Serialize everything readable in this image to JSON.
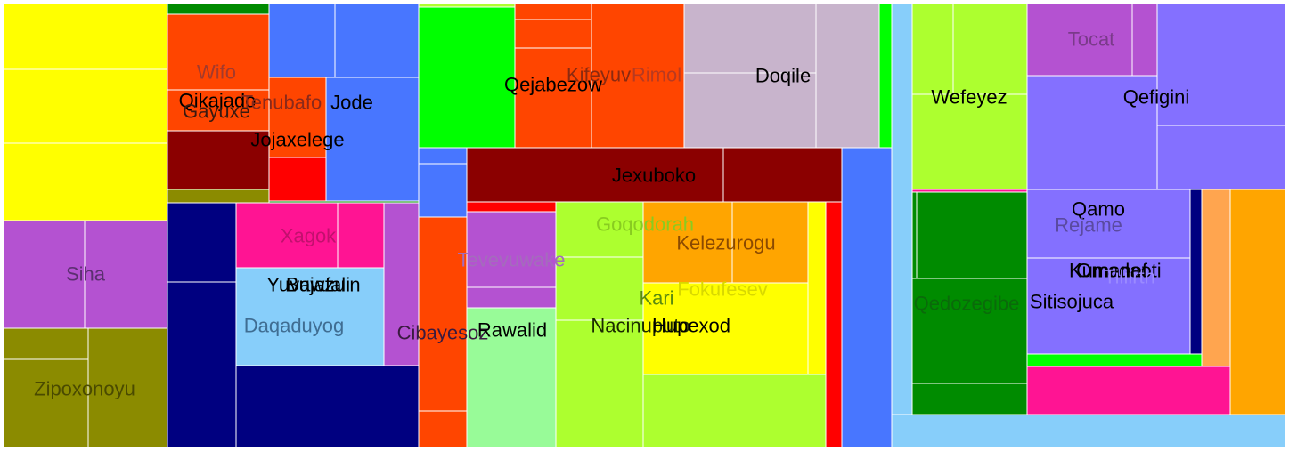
{
  "chart_data": {
    "type": "treemap",
    "colors": {
      "yellow": "#ffff00",
      "orchid": "#b452d1",
      "olive": "#8b8b00",
      "green_dark": "#008b00",
      "orange_red": "#ff4500",
      "maroon": "#8b0000",
      "red": "#ff0000",
      "royal_blue": "#4876ff",
      "navy": "#000080",
      "pink": "#ff1493",
      "sky": "#87cefa",
      "lime": "#00ff00",
      "pale_green": "#98fb98",
      "yellow_green": "#adff2f",
      "orange": "#ffa500",
      "thistle": "#c8b4cc",
      "slate": "#8470ff",
      "light_orange": "#ffa54f"
    },
    "cells": [
      {
        "c": "yellow",
        "r": [
          4,
          4,
          188,
          78
        ]
      },
      {
        "c": "yellow",
        "r": [
          4,
          78,
          188,
          161
        ]
      },
      {
        "c": "yellow",
        "r": [
          4,
          161,
          188,
          248
        ]
      },
      {
        "c": "orchid",
        "r": [
          4,
          248,
          95,
          369
        ]
      },
      {
        "c": "orchid",
        "r": [
          95,
          248,
          188,
          369
        ]
      },
      {
        "c": "olive",
        "r": [
          4,
          369,
          99,
          404
        ]
      },
      {
        "c": "olive",
        "r": [
          4,
          404,
          99,
          503
        ]
      },
      {
        "c": "olive",
        "r": [
          99,
          369,
          188,
          503
        ]
      },
      {
        "c": "green_dark",
        "r": [
          188,
          4,
          302,
          16
        ]
      },
      {
        "c": "orange_red",
        "r": [
          188,
          16,
          302,
          101
        ]
      },
      {
        "c": "orange_red",
        "r": [
          188,
          101,
          302,
          147
        ]
      },
      {
        "c": "maroon",
        "r": [
          188,
          147,
          302,
          213
        ]
      },
      {
        "c": "olive",
        "r": [
          188,
          213,
          302,
          228
        ]
      },
      {
        "c": "royal_blue",
        "r": [
          302,
          4,
          376,
          87
        ]
      },
      {
        "c": "royal_blue",
        "r": [
          376,
          4,
          470,
          87
        ]
      },
      {
        "c": "orange_red",
        "r": [
          302,
          87,
          366,
          177
        ]
      },
      {
        "c": "red",
        "r": [
          302,
          177,
          366,
          226
        ]
      },
      {
        "c": "royal_blue",
        "r": [
          366,
          87,
          470,
          226
        ]
      },
      {
        "c": "green_dark",
        "r": [
          302,
          226,
          470,
          229
        ]
      },
      {
        "c": "navy",
        "r": [
          188,
          228,
          265,
          317
        ]
      },
      {
        "c": "navy",
        "r": [
          188,
          317,
          265,
          503
        ]
      },
      {
        "c": "pink",
        "r": [
          265,
          228,
          379,
          301
        ]
      },
      {
        "c": "pink",
        "r": [
          379,
          228,
          431,
          301
        ]
      },
      {
        "c": "sky",
        "r": [
          265,
          301,
          431,
          411
        ]
      },
      {
        "c": "orchid",
        "r": [
          431,
          228,
          470,
          411
        ]
      },
      {
        "c": "navy",
        "r": [
          265,
          411,
          470,
          503
        ]
      },
      {
        "c": "yellow_green",
        "r": [
          470,
          4,
          578,
          8
        ]
      },
      {
        "c": "lime",
        "r": [
          470,
          8,
          578,
          166
        ]
      },
      {
        "c": "orange_red",
        "r": [
          578,
          4,
          664,
          22
        ]
      },
      {
        "c": "orange_red",
        "r": [
          578,
          22,
          664,
          54
        ]
      },
      {
        "c": "orange_red",
        "r": [
          578,
          54,
          664,
          166
        ]
      },
      {
        "c": "orange_red",
        "r": [
          664,
          4,
          768,
          166
        ]
      },
      {
        "c": "thistle",
        "r": [
          768,
          4,
          916,
          82
        ]
      },
      {
        "c": "thistle",
        "r": [
          768,
          82,
          916,
          166
        ]
      },
      {
        "c": "thistle",
        "r": [
          916,
          4,
          987,
          166
        ]
      },
      {
        "c": "lime",
        "r": [
          987,
          4,
          1001,
          166
        ]
      },
      {
        "c": "royal_blue",
        "r": [
          470,
          166,
          524,
          184
        ]
      },
      {
        "c": "royal_blue",
        "r": [
          470,
          184,
          524,
          244
        ]
      },
      {
        "c": "orange_red",
        "r": [
          470,
          244,
          524,
          462
        ]
      },
      {
        "c": "orange_red",
        "r": [
          470,
          462,
          524,
          503
        ]
      },
      {
        "c": "maroon",
        "r": [
          524,
          166,
          812,
          227
        ]
      },
      {
        "c": "maroon",
        "r": [
          812,
          166,
          945,
          227
        ]
      },
      {
        "c": "red",
        "r": [
          524,
          227,
          624,
          238
        ]
      },
      {
        "c": "orchid",
        "r": [
          524,
          238,
          624,
          323
        ]
      },
      {
        "c": "orchid",
        "r": [
          524,
          323,
          624,
          346
        ]
      },
      {
        "c": "pale_green",
        "r": [
          524,
          346,
          624,
          503
        ]
      },
      {
        "c": "yellow_green",
        "r": [
          624,
          227,
          722,
          289
        ]
      },
      {
        "c": "yellow_green",
        "r": [
          624,
          289,
          722,
          360
        ]
      },
      {
        "c": "yellow_green",
        "r": [
          624,
          360,
          722,
          503
        ]
      },
      {
        "c": "orange",
        "r": [
          722,
          227,
          822,
          318
        ]
      },
      {
        "c": "orange",
        "r": [
          822,
          227,
          907,
          318
        ]
      },
      {
        "c": "yellow",
        "r": [
          722,
          318,
          907,
          421
        ]
      },
      {
        "c": "yellow",
        "r": [
          907,
          227,
          927,
          421
        ]
      },
      {
        "c": "yellow_green",
        "r": [
          722,
          421,
          927,
          503
        ]
      },
      {
        "c": "red",
        "r": [
          927,
          227,
          945,
          503
        ]
      },
      {
        "c": "royal_blue",
        "r": [
          945,
          166,
          1001,
          503
        ]
      },
      {
        "c": "sky",
        "r": [
          1001,
          4,
          1024,
          466
        ]
      },
      {
        "c": "sky",
        "r": [
          1001,
          466,
          1443,
          503
        ]
      },
      {
        "c": "yellow_green",
        "r": [
          1024,
          4,
          1070,
          106
        ]
      },
      {
        "c": "yellow_green",
        "r": [
          1070,
          4,
          1153,
          106
        ]
      },
      {
        "c": "yellow_green",
        "r": [
          1024,
          106,
          1153,
          213
        ]
      },
      {
        "c": "pink",
        "r": [
          1024,
          213,
          1153,
          216
        ]
      },
      {
        "c": "green_dark",
        "r": [
          1024,
          216,
          1029,
          313
        ]
      },
      {
        "c": "green_dark",
        "r": [
          1029,
          216,
          1153,
          313
        ]
      },
      {
        "c": "green_dark",
        "r": [
          1024,
          313,
          1153,
          431
        ]
      },
      {
        "c": "green_dark",
        "r": [
          1024,
          431,
          1153,
          466
        ]
      },
      {
        "c": "orchid",
        "r": [
          1153,
          4,
          1271,
          85
        ]
      },
      {
        "c": "orchid",
        "r": [
          1271,
          4,
          1299,
          85
        ]
      },
      {
        "c": "slate",
        "r": [
          1299,
          4,
          1443,
          141
        ]
      },
      {
        "c": "slate",
        "r": [
          1153,
          85,
          1299,
          213
        ]
      },
      {
        "c": "slate",
        "r": [
          1299,
          141,
          1443,
          213
        ]
      },
      {
        "c": "slate",
        "r": [
          1153,
          213,
          1336,
          290
        ]
      },
      {
        "c": "slate",
        "r": [
          1153,
          290,
          1336,
          398
        ]
      },
      {
        "c": "navy",
        "r": [
          1336,
          213,
          1349,
          398
        ]
      },
      {
        "c": "light_orange",
        "r": [
          1349,
          213,
          1381,
          412
        ]
      },
      {
        "c": "orange",
        "r": [
          1381,
          213,
          1443,
          466
        ]
      },
      {
        "c": "lime",
        "r": [
          1153,
          398,
          1349,
          412
        ]
      },
      {
        "c": "pink",
        "r": [
          1153,
          412,
          1381,
          466
        ]
      }
    ],
    "labels": [
      {
        "t": "Wifo",
        "p": [
          243,
          81
        ],
        "c": "#a23a2c"
      },
      {
        "t": "Qikajado",
        "p": [
          244,
          113
        ],
        "c": "#000000"
      },
      {
        "t": "Tenubafo",
        "p": [
          316,
          115
        ],
        "c": "#8b2a1a"
      },
      {
        "t": "Jode",
        "p": [
          395,
          115
        ],
        "c": "#000000"
      },
      {
        "t": "Gayuxe",
        "p": [
          243,
          125
        ],
        "c": "#3a1a10"
      },
      {
        "t": "Jojaxelege",
        "p": [
          334,
          157
        ],
        "c": "#000000"
      },
      {
        "t": "Siha",
        "p": [
          96,
          308
        ],
        "c": "#5b2f70"
      },
      {
        "t": "Zipoxonoyu",
        "p": [
          95,
          437
        ],
        "c": "#4a4a00"
      },
      {
        "t": "Xagok",
        "p": [
          346,
          265
        ],
        "c": "#c2106e"
      },
      {
        "t": "Yuvawzuin",
        "p": [
          352,
          320
        ],
        "c": "#000000"
      },
      {
        "t": "Bujafali",
        "p": [
          357,
          320
        ],
        "c": "#000000"
      },
      {
        "t": "Daqaduyog",
        "p": [
          330,
          366
        ],
        "c": "#3f6d92"
      },
      {
        "t": "Cibayesoz",
        "p": [
          497,
          374
        ],
        "c": "#3a1a40"
      },
      {
        "t": "Qejabezow",
        "p": [
          621,
          95
        ],
        "c": "#000000"
      },
      {
        "t": "Kifeyuv",
        "p": [
          672,
          84
        ],
        "c": "#8b2a10"
      },
      {
        "t": "Rimol",
        "p": [
          737,
          84
        ],
        "c": "#b83a20"
      },
      {
        "t": "Doqile",
        "p": [
          879,
          85
        ],
        "c": "#000000"
      },
      {
        "t": "Jexuboko",
        "p": [
          734,
          197
        ],
        "c": "#000000"
      },
      {
        "t": "Tevevuwake",
        "p": [
          574,
          292
        ],
        "c": "#a46cbc"
      },
      {
        "t": "Rawalid",
        "p": [
          575,
          371
        ],
        "c": "#000000"
      },
      {
        "t": "Goqodorah",
        "p": [
          724,
          252
        ],
        "c": "#88cc20"
      },
      {
        "t": "Kelezurogu",
        "p": [
          815,
          273
        ],
        "c": "#8b4a00"
      },
      {
        "t": "Fokufesev",
        "p": [
          811,
          325
        ],
        "c": "#d8d800"
      },
      {
        "t": "Kari",
        "p": [
          737,
          335
        ],
        "c": "#5a8a10"
      },
      {
        "t": "Nacinuputo",
        "p": [
          719,
          366
        ],
        "c": "#1a2a00"
      },
      {
        "t": "Hupexod",
        "p": [
          776,
          366
        ],
        "c": "#000000"
      },
      {
        "t": "Wefeyez",
        "p": [
          1088,
          109
        ],
        "c": "#000000"
      },
      {
        "t": "Tocat",
        "p": [
          1225,
          44
        ],
        "c": "#7a3a8a"
      },
      {
        "t": "Qefigini",
        "p": [
          1298,
          109
        ],
        "c": "#000000"
      },
      {
        "t": "Qamo",
        "p": [
          1233,
          235
        ],
        "c": "#000000"
      },
      {
        "t": "Rejame",
        "p": [
          1222,
          253
        ],
        "c": "#5a4aa0"
      },
      {
        "t": "Kumanof",
        "p": [
          1244,
          304
        ],
        "c": "#000000"
      },
      {
        "t": "Omadaoti",
        "p": [
          1256,
          304
        ],
        "c": "#000000"
      },
      {
        "t": "Tiliirth",
        "p": [
          1268,
          311
        ],
        "c": "#9a8aff"
      },
      {
        "t": "Qedozegibe",
        "p": [
          1085,
          341
        ],
        "c": "#0a6a0a"
      },
      {
        "t": "Sitisojuca",
        "p": [
          1203,
          339
        ],
        "c": "#000000"
      }
    ]
  }
}
